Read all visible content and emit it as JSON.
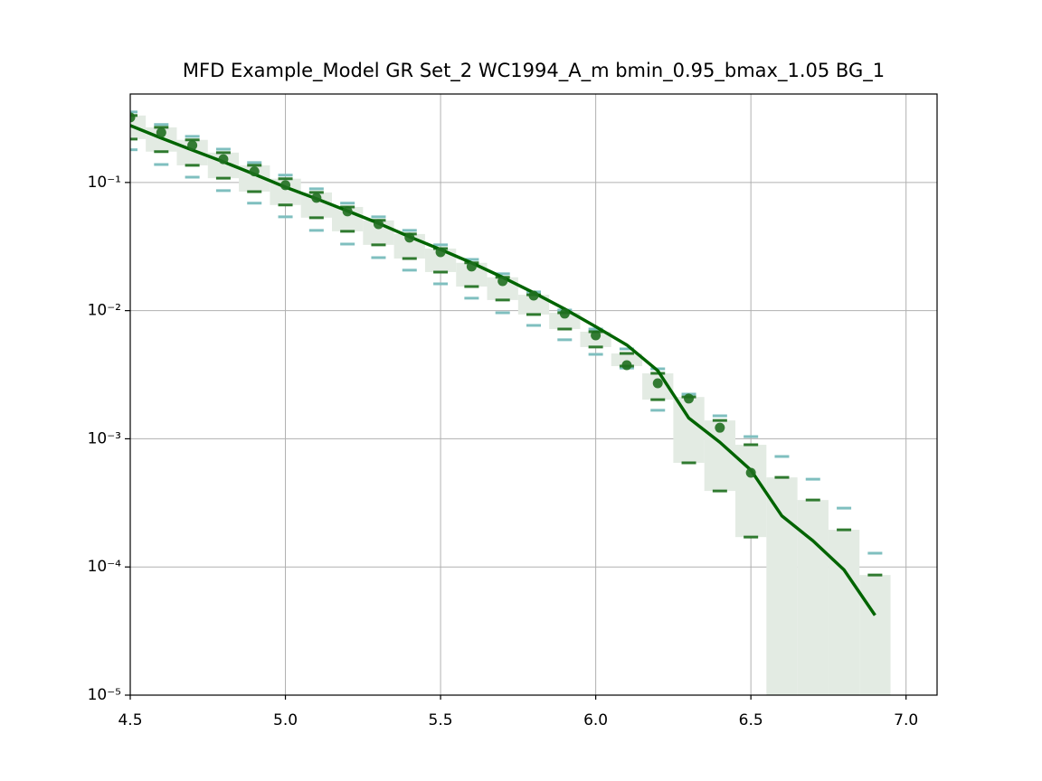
{
  "chart_data": {
    "type": "mfd",
    "title": "MFD Example_Model GR Set_2 WC1994_A_m bmin_0.95_bmax_1.05 BG_1",
    "log_y": true,
    "grid": true,
    "xlim": [
      4.5,
      7.1
    ],
    "xticks": [
      4.5,
      {
        "value": 5,
        "label": "5.0"
      },
      5.5,
      {
        "value": 6,
        "label": "6.0"
      },
      6.5,
      {
        "value": 7,
        "label": "7.0"
      }
    ],
    "ylim": [
      1e-05,
      0.49
    ],
    "yticks": [
      {
        "value": 1e-05,
        "label": "10⁻⁵"
      },
      {
        "value": 0.0001,
        "label": "10⁻⁴"
      },
      {
        "value": 0.001,
        "label": "10⁻³"
      },
      {
        "value": 0.01,
        "label": "10⁻²"
      },
      {
        "value": 0.1,
        "label": "10⁻¹"
      }
    ],
    "x": [
      4.5,
      4.6,
      4.7,
      4.8,
      4.9,
      5.0,
      5.1,
      5.2,
      5.3,
      5.4,
      5.5,
      5.6,
      5.7,
      5.8,
      5.9,
      6.0,
      6.1,
      6.2,
      6.3,
      6.4,
      6.5,
      6.6,
      6.7,
      6.8,
      6.9
    ],
    "band_color": "#e3ebe3",
    "green_high": {
      "color": "#2f7a2f",
      "values": [
        0.333,
        0.269,
        0.215,
        0.171,
        0.136,
        0.107,
        0.0836,
        0.0644,
        0.0506,
        0.0396,
        0.0305,
        0.0236,
        0.0182,
        0.0133,
        0.00963,
        0.00685,
        0.00463,
        0.00324,
        0.00212,
        0.00139,
        0.000898,
        0.0005,
        0.000333,
        0.000195,
        8.65e-05
      ]
    },
    "green_low": {
      "color": "#2f7a2f",
      "values": [
        0.218,
        0.174,
        0.136,
        0.108,
        0.0849,
        0.0667,
        0.0531,
        0.0416,
        0.0326,
        0.0255,
        0.02,
        0.0154,
        0.0121,
        0.00933,
        0.00719,
        0.0052,
        0.00369,
        0.00202,
        0.000649,
        0.000392,
        0.000171,
        0,
        0,
        0,
        0
      ]
    },
    "teal_high": {
      "color": "#7fbfbf",
      "values": [
        0.355,
        0.283,
        0.229,
        0.182,
        0.143,
        0.114,
        0.0893,
        0.0689,
        0.0539,
        0.0423,
        0.0326,
        0.0251,
        0.0194,
        0.014,
        0.0101,
        0.00719,
        0.00503,
        0.00352,
        0.00223,
        0.00151,
        0.00104,
        0.000728,
        0.000484,
        0.000288,
        0.000128
      ]
    },
    "teal_low": {
      "color": "#7fbfbf",
      "values": [
        0.18,
        0.138,
        0.11,
        0.0863,
        0.0689,
        0.0539,
        0.0423,
        0.0331,
        0.0259,
        0.0207,
        0.0162,
        0.0125,
        0.00963,
        0.00767,
        0.00592,
        0.00456,
        0.00357,
        0.00167,
        null,
        null,
        null,
        null,
        null,
        null,
        null
      ]
    },
    "model_line": {
      "color": "#006400",
      "values": [
        0.278,
        0.222,
        0.179,
        0.145,
        0.116,
        0.092,
        0.0746,
        0.06,
        0.048,
        0.0377,
        0.03,
        0.0236,
        0.0182,
        0.0138,
        0.0103,
        0.0075,
        0.0054,
        0.0034,
        0.00145,
        0.00094,
        0.00057,
        0.00025,
        0.00016,
        9.5e-05,
        4.2e-05
      ]
    },
    "observed": {
      "color": "#1f6f1f",
      "values": [
        0.322,
        0.245,
        0.195,
        0.152,
        0.122,
        0.0953,
        0.0759,
        0.0595,
        0.0473,
        0.0371,
        0.0286,
        0.0221,
        0.017,
        0.0131,
        0.00948,
        0.00641,
        0.00375,
        0.00271,
        0.00206,
        0.00122,
        0.000543,
        null,
        null,
        null,
        null
      ]
    }
  }
}
